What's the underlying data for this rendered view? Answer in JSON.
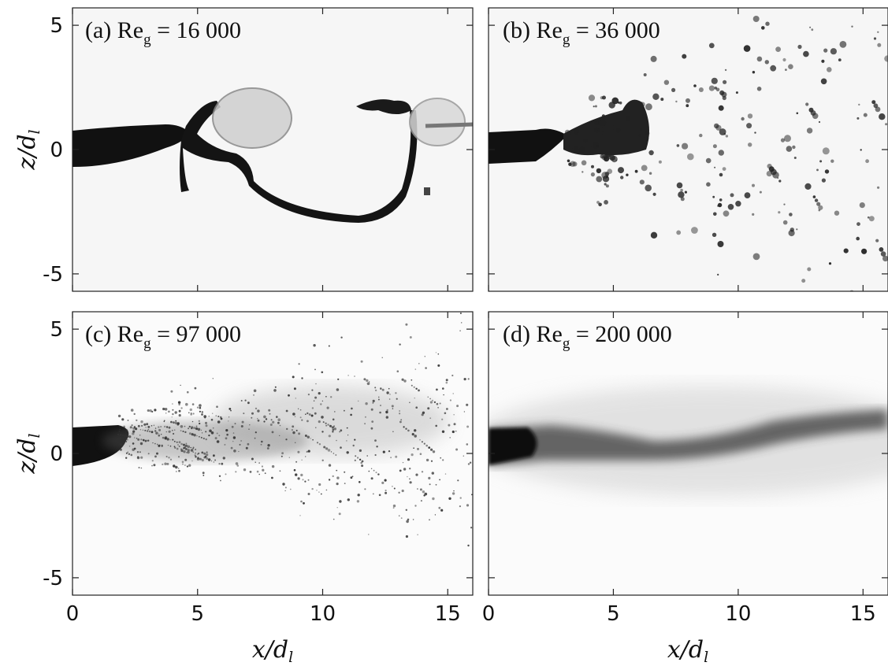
{
  "figure": {
    "xlabel": "x/d",
    "xlabel_sub": "l",
    "ylabel": "z/d",
    "ylabel_sub": "l",
    "panels": [
      {
        "label_pre": "(a) Re",
        "label_sub": "g",
        "label_post": " = 16 000",
        "regime": "ligament"
      },
      {
        "label_pre": "(b) Re",
        "label_sub": "g",
        "label_post": " = 36 000",
        "regime": "droplets"
      },
      {
        "label_pre": "(c) Re",
        "label_sub": "g",
        "label_post": " = 97 000",
        "regime": "spray"
      },
      {
        "label_pre": "(d) Re",
        "label_sub": "g",
        "label_post": " = 200 000",
        "regime": "mist"
      }
    ]
  },
  "chart_data": [
    {
      "type": "image",
      "title": "(a) Re_g = 16 000",
      "xlim": [
        0,
        16
      ],
      "ylim": [
        -5.7,
        5.7
      ],
      "xticks": [
        "0",
        "5",
        "10",
        "15"
      ],
      "yticks": [
        "5",
        "0",
        "-5"
      ]
    },
    {
      "type": "image",
      "title": "(b) Re_g = 36 000",
      "xlim": [
        0,
        16
      ],
      "ylim": [
        -5.7,
        5.7
      ],
      "xticks": [
        "0",
        "5",
        "10",
        "15"
      ],
      "yticks": [
        "5",
        "0",
        "-5"
      ]
    },
    {
      "type": "image",
      "title": "(c) Re_g = 97 000",
      "xlim": [
        0,
        16
      ],
      "ylim": [
        -5.7,
        5.7
      ],
      "xticks": [
        "0",
        "5",
        "10",
        "15"
      ],
      "yticks": [
        "5",
        "0",
        "-5"
      ]
    },
    {
      "type": "image",
      "title": "(d) Re_g = 200 000",
      "xlim": [
        0,
        16
      ],
      "ylim": [
        -5.7,
        5.7
      ],
      "xticks": [
        "0",
        "5",
        "10",
        "15"
      ],
      "yticks": [
        "5",
        "0",
        "-5"
      ]
    }
  ]
}
